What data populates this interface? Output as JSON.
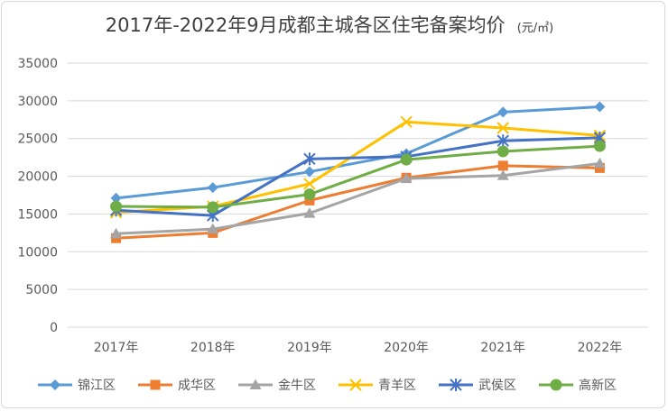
{
  "chart_data": {
    "type": "line",
    "title": "2017年-2022年9月成都主城各区住宅备案均价",
    "unit": "(元/㎡)",
    "categories": [
      "2017年",
      "2018年",
      "2019年",
      "2020年",
      "2021年",
      "2022年"
    ],
    "ylim": [
      0,
      35000
    ],
    "yticks": [
      0,
      5000,
      10000,
      15000,
      20000,
      25000,
      30000,
      35000
    ],
    "grid": true,
    "legend_position": "bottom",
    "series": [
      {
        "name": "锦江区",
        "color": "#5B9BD5",
        "marker": "diamond",
        "values": [
          17100,
          18500,
          20600,
          23000,
          28500,
          29200
        ]
      },
      {
        "name": "成华区",
        "color": "#ED7D31",
        "marker": "square",
        "values": [
          11800,
          12500,
          16800,
          19800,
          21400,
          21100
        ]
      },
      {
        "name": "金牛区",
        "color": "#A5A5A5",
        "marker": "triangle",
        "values": [
          12400,
          13000,
          15100,
          19700,
          20100,
          21700
        ]
      },
      {
        "name": "青羊区",
        "color": "#FFC000",
        "marker": "x",
        "values": [
          15200,
          16000,
          19000,
          27200,
          26400,
          25400
        ]
      },
      {
        "name": "武侯区",
        "color": "#4472C4",
        "marker": "star",
        "values": [
          15500,
          14800,
          22300,
          22600,
          24700,
          25100
        ]
      },
      {
        "name": "高新区",
        "color": "#70AD47",
        "marker": "circle",
        "values": [
          16000,
          15900,
          17600,
          22200,
          23300,
          24000
        ]
      }
    ]
  }
}
